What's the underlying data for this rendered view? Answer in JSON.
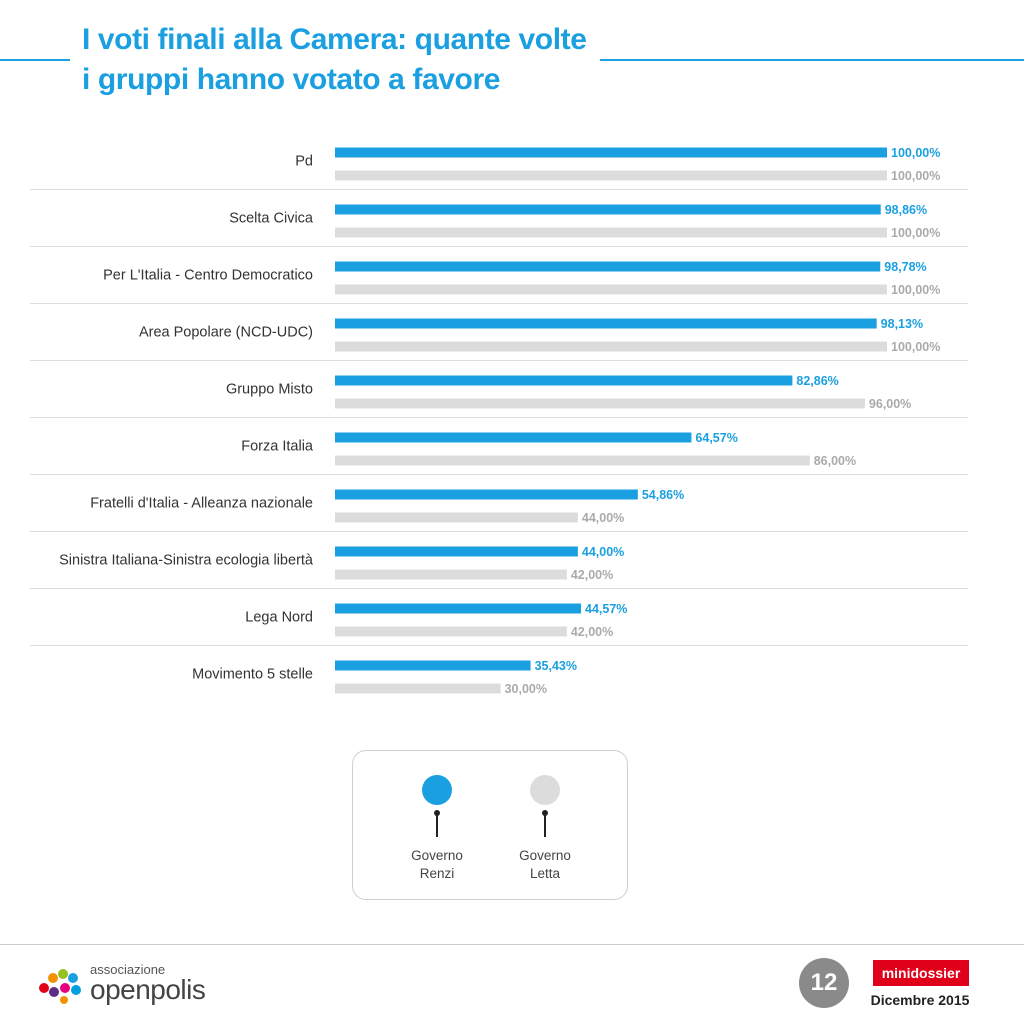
{
  "header": {
    "title_line1": "I voti finali alla Camera: quante volte",
    "title_line2": "i gruppi hanno votato a favore"
  },
  "colors": {
    "renzi": "#1a9fe0",
    "letta": "#dcdcdc",
    "letta_label": "#aaaaaa",
    "title": "#1a9fe0"
  },
  "chart_data": {
    "type": "bar",
    "orientation": "horizontal",
    "categories": [
      "Pd",
      "Scelta Civica",
      "Per L'Italia - Centro Democratico",
      "Area Popolare (NCD-UDC)",
      "Gruppo Misto",
      "Forza Italia",
      "Fratelli d'Italia - Alleanza nazionale",
      "Sinistra Italiana-Sinistra ecologia libertà",
      "Lega Nord",
      "Movimento 5 stelle"
    ],
    "series": [
      {
        "name": "Governo Renzi",
        "values": [
          100.0,
          98.86,
          98.78,
          98.13,
          82.86,
          64.57,
          54.86,
          44.0,
          44.57,
          35.43
        ],
        "labels": [
          "100,00%",
          "98,86%",
          "98,78%",
          "98,13%",
          "82,86%",
          "64,57%",
          "54,86%",
          "44,00%",
          "44,57%",
          "35,43%"
        ]
      },
      {
        "name": "Governo Letta",
        "values": [
          100.0,
          100.0,
          100.0,
          100.0,
          96.0,
          86.0,
          44.0,
          42.0,
          42.0,
          30.0
        ],
        "labels": [
          "100,00%",
          "100,00%",
          "100,00%",
          "100,00%",
          "96,00%",
          "86,00%",
          "44,00%",
          "42,00%",
          "42,00%",
          "30,00%"
        ]
      }
    ],
    "xlim": [
      0,
      100
    ],
    "grid": false,
    "legend_position": "bottom-center"
  },
  "legend": {
    "renzi": "Governo\nRenzi",
    "letta": "Governo\nLetta"
  },
  "footer": {
    "logo_small": "associazione",
    "logo_big": "openpolis",
    "page_number": "12",
    "brand": "minidossier",
    "date": "Dicembre 2015"
  }
}
